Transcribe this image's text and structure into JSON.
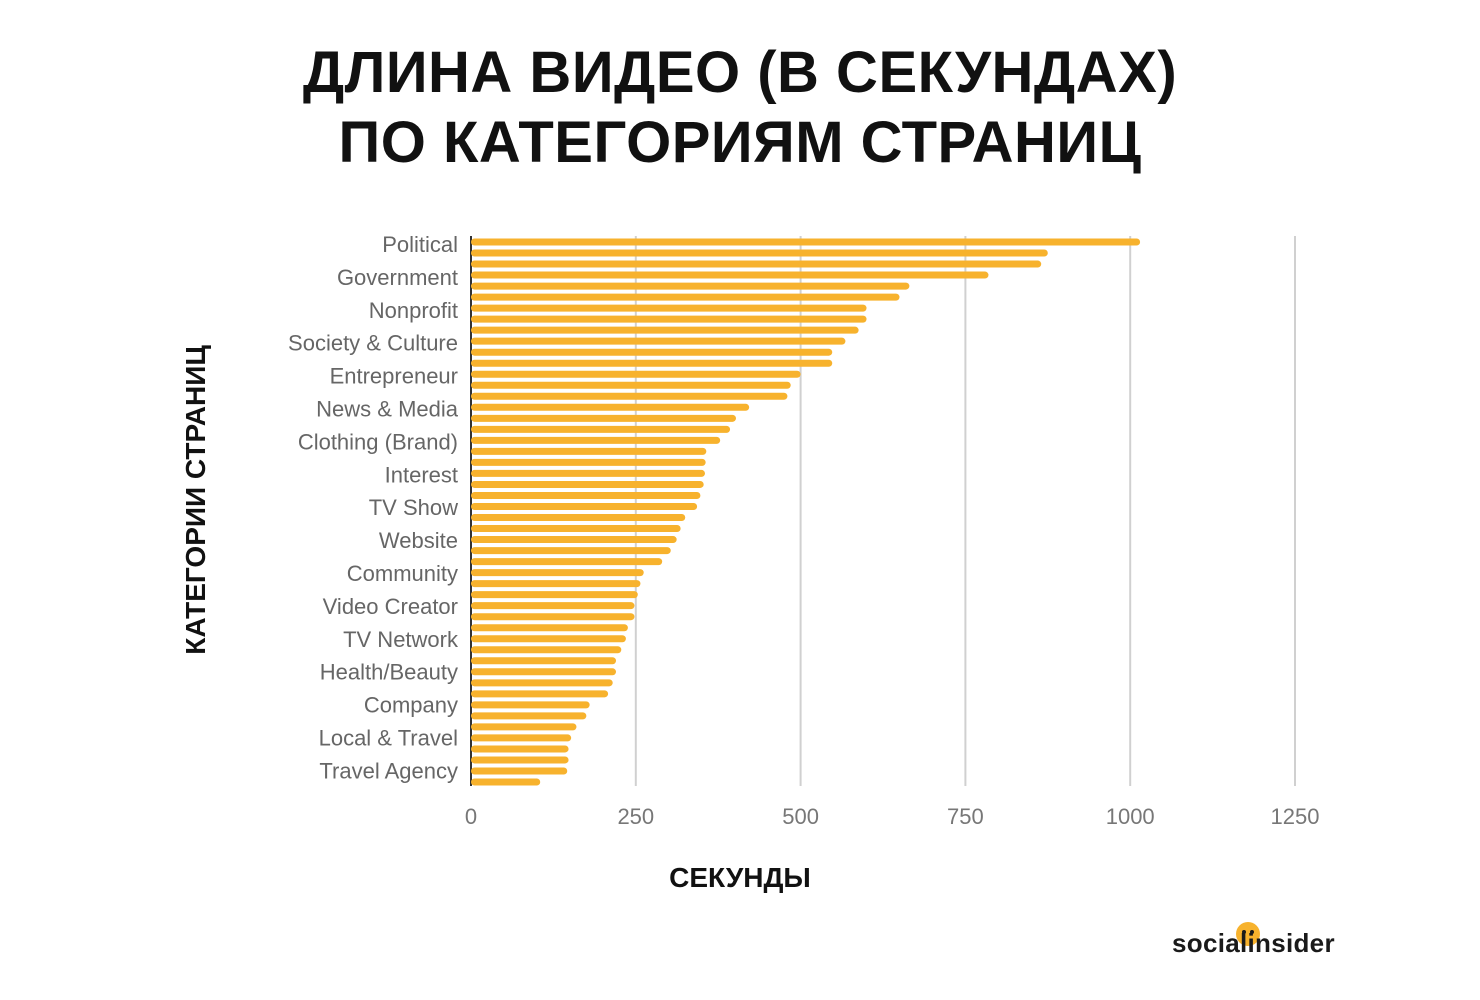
{
  "chart_data": {
    "type": "bar",
    "orientation": "horizontal",
    "title": [
      "ДЛИНА ВИДЕО (В СЕКУНДАХ)",
      "ПО КАТЕГОРИЯМ СТРАНИЦ"
    ],
    "xlabel": "СЕКУНДЫ",
    "ylabel": "КАТЕГОРИИ СТРАНИЦ",
    "xlim": [
      0,
      1250
    ],
    "xticks": [
      0,
      250,
      500,
      750,
      1000,
      1250
    ],
    "grid": true,
    "bar_color": "#f7b22d",
    "category_labels": [
      "Political",
      "Government",
      "Nonprofit",
      "Society & Culture",
      "Entrepreneur",
      "News & Media",
      "Clothing (Brand)",
      "Interest",
      "TV Show",
      "Website",
      "Community",
      "Video Creator",
      "TV Network",
      "Health/Beauty",
      "Company",
      "Local & Travel",
      "Travel Agency"
    ],
    "values": [
      1015,
      875,
      865,
      785,
      665,
      650,
      600,
      600,
      588,
      568,
      548,
      548,
      500,
      485,
      480,
      422,
      402,
      393,
      378,
      357,
      356,
      355,
      353,
      348,
      343,
      325,
      318,
      312,
      303,
      290,
      262,
      257,
      253,
      248,
      248,
      238,
      235,
      228,
      220,
      220,
      215,
      208,
      180,
      175,
      160,
      152,
      148,
      148,
      146,
      105
    ]
  },
  "logo": {
    "text": "socialinsider"
  }
}
